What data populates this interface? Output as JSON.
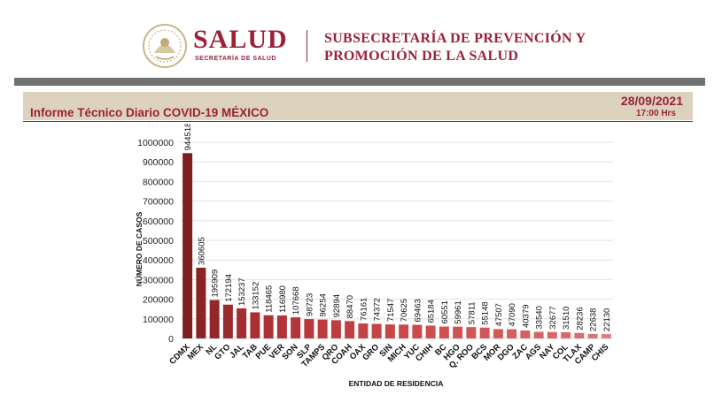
{
  "header": {
    "brand_title": "SALUD",
    "brand_subtitle": "SECRETARÍA DE SALUD",
    "subsecretaria_line1": "SUBSECRETARÍA DE PREVENCIÓN Y",
    "subsecretaria_line2": "PROMOCIÓN DE LA SALUD",
    "brand_color": "#9a2239"
  },
  "report": {
    "title": "Informe Técnico Diario COVID-19 MÉXICO",
    "date": "28/09/2021",
    "time": "17:00 Hrs"
  },
  "chart_data": {
    "type": "bar",
    "xlabel": "ENTIDAD DE RESIDENCIA",
    "ylabel": "NÚMERO DE CASOS",
    "ylim": [
      0,
      1000000
    ],
    "yticks": [
      0,
      100000,
      200000,
      300000,
      400000,
      500000,
      600000,
      700000,
      800000,
      900000,
      1000000
    ],
    "grid": true,
    "categories": [
      "CDMX",
      "MEX",
      "NL",
      "GTO",
      "JAL",
      "TAB",
      "PUE",
      "VER",
      "SON",
      "SLP",
      "TAMPS",
      "QRO",
      "COAH",
      "OAX",
      "GRO",
      "SIN",
      "MICH",
      "YUC",
      "CHIH",
      "BC",
      "HGO",
      "Q. ROO",
      "BCS",
      "MOR",
      "DGO",
      "ZAC",
      "AGS",
      "NAY",
      "COL",
      "TLAX",
      "CAMP",
      "CHIS"
    ],
    "values": [
      944518,
      360605,
      195909,
      172194,
      153237,
      133152,
      118465,
      116980,
      107668,
      98723,
      96254,
      92894,
      88470,
      76161,
      74372,
      71547,
      70625,
      69463,
      65184,
      60551,
      59961,
      57811,
      55148,
      47507,
      47090,
      40379,
      33540,
      32677,
      31510,
      28236,
      22638,
      22130
    ],
    "colors": [
      "#7b1f20",
      "#8a2324",
      "#93272a",
      "#9b2a2e",
      "#a22d31",
      "#a83034",
      "#ad3236",
      "#b13438",
      "#b5363a",
      "#b8393c",
      "#bb3b3e",
      "#be3d40",
      "#c14042",
      "#c34244",
      "#c54446",
      "#c74748",
      "#c9494a",
      "#cb4b4c",
      "#cd4e4e",
      "#ce5050",
      "#d05353",
      "#d15555",
      "#d25858",
      "#d45a5a",
      "#d55d5d",
      "#d66060",
      "#d76363",
      "#d86666",
      "#d96969",
      "#da6c6c",
      "#dc7575",
      "#de7d7d"
    ]
  }
}
